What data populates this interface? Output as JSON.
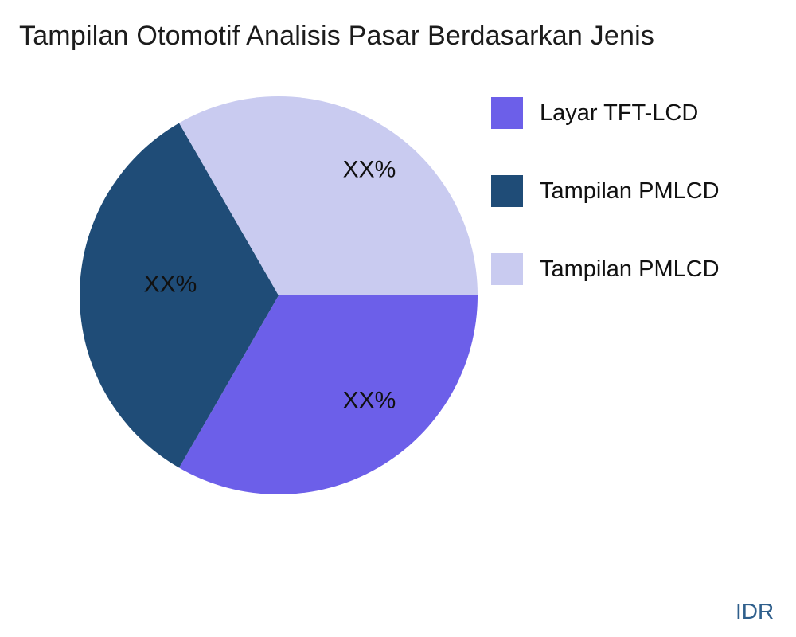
{
  "page": {
    "title": "Tampilan Otomotif Analisis Pasar Berdasarkan Jenis",
    "watermark": "IDR",
    "background": "#ffffff"
  },
  "colors": {
    "title_text": "#1c1c1c",
    "label_text": "#111111",
    "watermark_text": "#2F5F8C"
  },
  "chart_data": {
    "type": "pie",
    "title": "Tampilan Otomotif Analisis Pasar Berdasarkan Jenis",
    "legend_position": "right",
    "value_labels_masked": "XX%",
    "slices": [
      {
        "label": "Layar TFT-LCD",
        "display_value": "XX%",
        "value_pct": 33.3,
        "color": "#6C5FE9",
        "start_angle_deg": 240,
        "end_angle_deg": 360
      },
      {
        "label": "Tampilan PMLCD",
        "display_value": "XX%",
        "value_pct": 33.3,
        "color": "#1F4C77",
        "start_angle_deg": 120,
        "end_angle_deg": 240
      },
      {
        "label": "Tampilan PMLCD",
        "display_value": "XX%",
        "value_pct": 33.3,
        "color": "#C9CBF0",
        "start_angle_deg": 0,
        "end_angle_deg": 120
      }
    ]
  }
}
